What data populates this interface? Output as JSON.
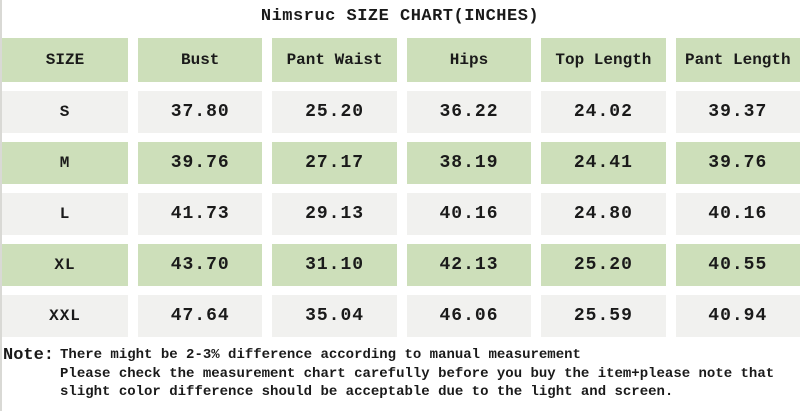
{
  "title": "Nimsruc SIZE CHART(INCHES)",
  "colors": {
    "header_green": "#cddfba",
    "row_gray": "#f1f1ef",
    "text": "#1a1a1a",
    "background": "#ffffff"
  },
  "table": {
    "header": [
      "SIZE",
      "Bust",
      "Pant Waist",
      "Hips",
      "Top Length",
      "Pant Length"
    ],
    "rows": [
      {
        "cells": [
          "S",
          "37.80",
          "25.20",
          "36.22",
          "24.02",
          "39.37"
        ]
      },
      {
        "cells": [
          "M",
          "39.76",
          "27.17",
          "38.19",
          "24.41",
          "39.76"
        ]
      },
      {
        "cells": [
          "L",
          "41.73",
          "29.13",
          "40.16",
          "24.80",
          "40.16"
        ]
      },
      {
        "cells": [
          "XL",
          "43.70",
          "31.10",
          "42.13",
          "25.20",
          "40.55"
        ]
      },
      {
        "cells": [
          "XXL",
          "47.64",
          "35.04",
          "46.06",
          "25.59",
          "40.94"
        ]
      }
    ]
  },
  "note": {
    "label": "Note:",
    "lines": [
      "There might be 2-3% difference according to manual measurement",
      "Please check the measurement chart carefully before you buy the item+please note that",
      "slight color difference should be acceptable due to the light and screen."
    ]
  }
}
